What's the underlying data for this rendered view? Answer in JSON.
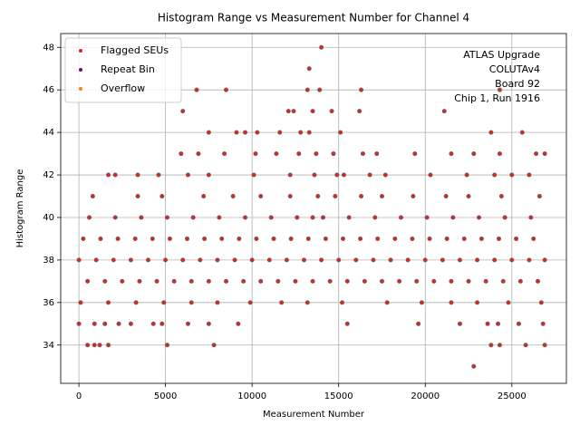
{
  "chart_data": {
    "type": "scatter",
    "title": "Histogram Range vs Measurement Number for Channel 4",
    "x_label": "Measurement Number",
    "y_label": "Histogram Range",
    "annotation": [
      "ATLAS Upgrade",
      "COLUTAv4",
      "Board 92",
      "Chip 1, Run 1916"
    ],
    "xlim": [
      -1050,
      28150
    ],
    "ylim": [
      32.2,
      48.65
    ],
    "xticks": [
      0,
      5000,
      10000,
      15000,
      20000,
      25000
    ],
    "yticks": [
      34,
      36,
      38,
      40,
      42,
      44,
      46,
      48
    ],
    "grid": true,
    "legend": "upper left",
    "series": [
      {
        "name": "Flagged SEUs",
        "color": "#d62728",
        "x": [
          0,
          1000,
          2000,
          3000,
          4000,
          5000,
          6000,
          7000,
          8000,
          9000,
          10000,
          11000,
          12000,
          13000,
          14000,
          15000,
          16000,
          17000,
          18000,
          19000,
          20000,
          21000,
          22000,
          23000,
          24000,
          25000,
          26000,
          26900,
          250,
          1250,
          2250,
          3250,
          4250,
          5250,
          6250,
          7250,
          8250,
          9250,
          10250,
          11250,
          12250,
          13250,
          14250,
          15250,
          16250,
          17250,
          18250,
          19250,
          20250,
          21250,
          22250,
          23250,
          24250,
          25250,
          26250,
          500,
          1500,
          2500,
          3500,
          4500,
          5500,
          6500,
          7500,
          8500,
          9500,
          10500,
          11500,
          12500,
          13500,
          14500,
          15500,
          16500,
          17500,
          18500,
          19500,
          20500,
          21500,
          22500,
          23500,
          24500,
          25500,
          26500,
          600,
          2100,
          3600,
          5100,
          6600,
          8100,
          9600,
          11100,
          12600,
          13500,
          14100,
          15600,
          17100,
          18600,
          20100,
          21600,
          23100,
          24600,
          26100,
          100,
          1700,
          3300,
          4900,
          6500,
          8000,
          9900,
          11700,
          13200,
          15200,
          17800,
          19800,
          21500,
          23000,
          24800,
          26700,
          800,
          3400,
          4800,
          7200,
          8900,
          10500,
          12200,
          13800,
          14800,
          16300,
          17500,
          19300,
          21200,
          22500,
          24400,
          26600,
          0,
          900,
          1500,
          2300,
          3000,
          4300,
          4800,
          6300,
          7500,
          9200,
          15500,
          19600,
          22000,
          23600,
          24200,
          25400,
          26800,
          1700,
          2100,
          3400,
          4600,
          6300,
          7500,
          10100,
          12200,
          13600,
          14900,
          15300,
          16800,
          17700,
          20300,
          22400,
          24000,
          25000,
          26000,
          5900,
          6900,
          8400,
          10200,
          11400,
          12700,
          13700,
          14700,
          16400,
          17200,
          19400,
          21500,
          22800,
          24300,
          26400,
          26900,
          7500,
          9100,
          9600,
          10300,
          11600,
          12800,
          13300,
          15100,
          23800,
          25600,
          6000,
          12100,
          12400,
          13500,
          14600,
          16200,
          21100,
          6800,
          8500,
          13200,
          13900,
          16300,
          24300,
          13300,
          14000,
          500,
          900,
          1200,
          1700,
          5100,
          7800,
          23800,
          24300,
          25800,
          26900,
          22800
        ],
        "values": [
          38,
          38,
          38,
          38,
          38,
          38,
          38,
          38,
          38,
          38,
          38,
          38,
          38,
          38,
          38,
          38,
          38,
          38,
          38,
          38,
          38,
          38,
          38,
          38,
          38,
          38,
          38,
          38,
          39,
          39,
          39,
          39,
          39,
          39,
          39,
          39,
          39,
          39,
          39,
          39,
          39,
          39,
          39,
          39,
          39,
          39,
          39,
          39,
          39,
          39,
          39,
          39,
          39,
          39,
          39,
          37,
          37,
          37,
          37,
          37,
          37,
          37,
          37,
          37,
          37,
          37,
          37,
          37,
          37,
          37,
          37,
          37,
          37,
          37,
          37,
          37,
          37,
          37,
          37,
          37,
          37,
          37,
          40,
          40,
          40,
          40,
          40,
          40,
          40,
          40,
          40,
          40,
          40,
          40,
          40,
          40,
          40,
          40,
          40,
          40,
          40,
          36,
          36,
          36,
          36,
          36,
          36,
          36,
          36,
          36,
          36,
          36,
          36,
          36,
          36,
          36,
          36,
          41,
          41,
          41,
          41,
          41,
          41,
          41,
          41,
          41,
          41,
          41,
          41,
          41,
          41,
          41,
          41,
          35,
          35,
          35,
          35,
          35,
          35,
          35,
          35,
          35,
          35,
          35,
          35,
          35,
          35,
          35,
          35,
          35,
          42,
          42,
          42,
          42,
          42,
          42,
          42,
          42,
          42,
          42,
          42,
          42,
          42,
          42,
          42,
          42,
          42,
          42,
          43,
          43,
          43,
          43,
          43,
          43,
          43,
          43,
          43,
          43,
          43,
          43,
          43,
          43,
          43,
          43,
          44,
          44,
          44,
          44,
          44,
          44,
          44,
          44,
          44,
          44,
          45,
          45,
          45,
          45,
          45,
          45,
          45,
          46,
          46,
          46,
          46,
          46,
          46,
          47,
          48,
          34,
          34,
          34,
          34,
          34,
          34,
          34,
          34,
          34,
          34,
          33
        ]
      },
      {
        "name": "Repeat Bin",
        "color": "#800080",
        "x": [],
        "values": []
      },
      {
        "name": "Overflow",
        "color": "#ff7f0e",
        "x": [],
        "values": []
      }
    ]
  }
}
